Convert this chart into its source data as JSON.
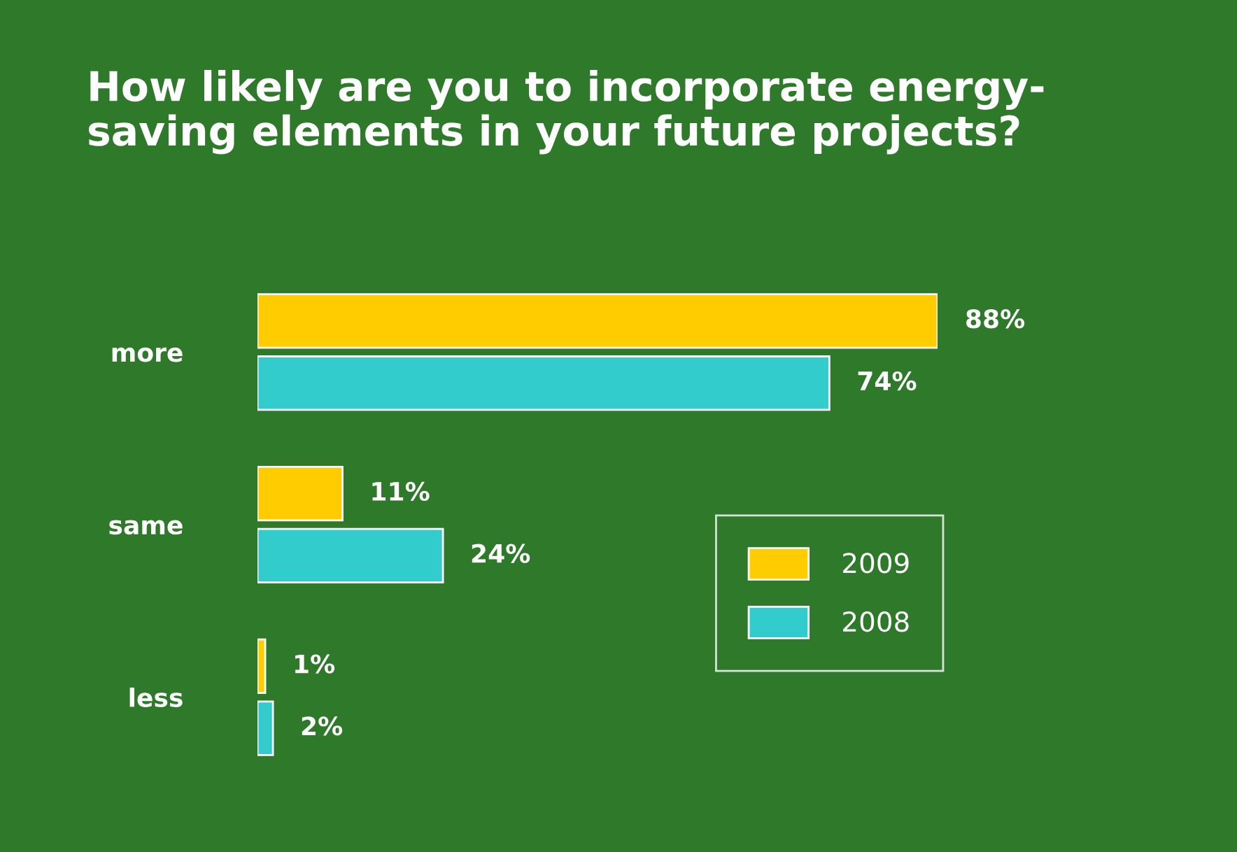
{
  "chart_data": {
    "type": "bar",
    "orientation": "horizontal",
    "title": "How likely are you to incorporate energy-\nsaving elements in your future projects?",
    "categories": [
      "more",
      "same",
      "less"
    ],
    "series": [
      {
        "name": "2009",
        "color": "#ffcc00",
        "values": [
          88,
          11,
          1
        ],
        "value_labels": [
          "88%",
          "11%",
          "1%"
        ]
      },
      {
        "name": "2008",
        "color": "#33cccc",
        "values": [
          74,
          24,
          2
        ],
        "value_labels": [
          "74%",
          "24%",
          "2%"
        ]
      }
    ],
    "grid": false,
    "legend": "right"
  }
}
